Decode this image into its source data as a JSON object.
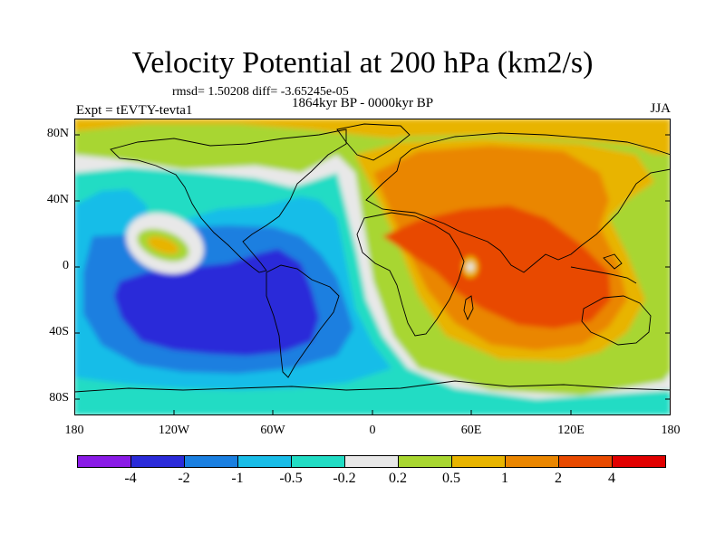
{
  "title": "Velocity Potential at 200 hPa (km2/s)",
  "stats": "rmsd= 1.50208 diff= -3.65245e-05",
  "expt": "Expt = tEVTY-tevta1",
  "period": "1864kyr BP - 0000kyr BP",
  "season": "JJA",
  "lat_labels": [
    "80N",
    "40N",
    "0",
    "40S",
    "80S"
  ],
  "lon_labels": [
    "180",
    "120W",
    "60W",
    "0",
    "60E",
    "120E",
    "180"
  ],
  "colorbar": {
    "colors": [
      "#8a1be6",
      "#2b2bd9",
      "#1a7fe0",
      "#19bde8",
      "#21dcc4",
      "#e8e8e8",
      "#a8d630",
      "#e8b400",
      "#ea8600",
      "#e84a00",
      "#e00000"
    ],
    "labels": [
      "-4",
      "-2",
      "-1",
      "-0.5",
      "-0.2",
      "0.2",
      "0.5",
      "1",
      "2",
      "4"
    ]
  }
}
